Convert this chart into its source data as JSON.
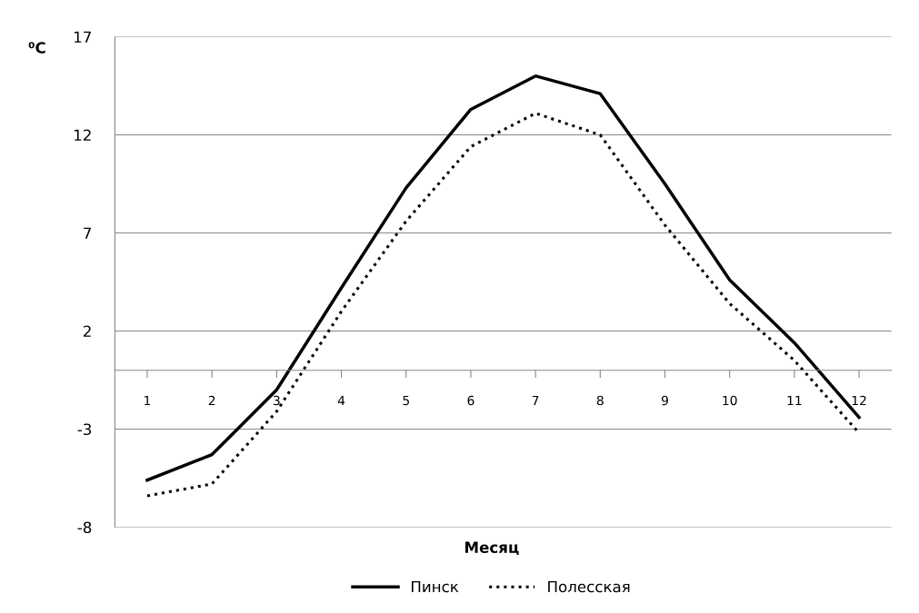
{
  "chart_data": {
    "type": "line",
    "xlabel": "Месяц",
    "ylabel": "⁰C",
    "categories": [
      "1",
      "2",
      "3",
      "4",
      "5",
      "6",
      "7",
      "8",
      "9",
      "10",
      "11",
      "12"
    ],
    "series": [
      {
        "name": "Пинск",
        "color": "#000000",
        "line_style": "solid",
        "values": [
          -5.6,
          -4.3,
          -1.0,
          4.2,
          9.3,
          13.3,
          15.0,
          14.1,
          9.5,
          4.6,
          1.4,
          -2.4
        ]
      },
      {
        "name": "Полесская",
        "color": "#000000",
        "line_style": "dotted",
        "values": [
          -6.4,
          -5.8,
          -2.1,
          3.0,
          7.6,
          11.4,
          13.1,
          12.0,
          7.4,
          3.4,
          0.5,
          -3.2
        ]
      }
    ],
    "ylim": [
      -8,
      17
    ],
    "yticks": [
      -8,
      -3,
      2,
      7,
      12,
      17
    ],
    "grid": "y",
    "legend": "bottom",
    "marker": "none"
  }
}
